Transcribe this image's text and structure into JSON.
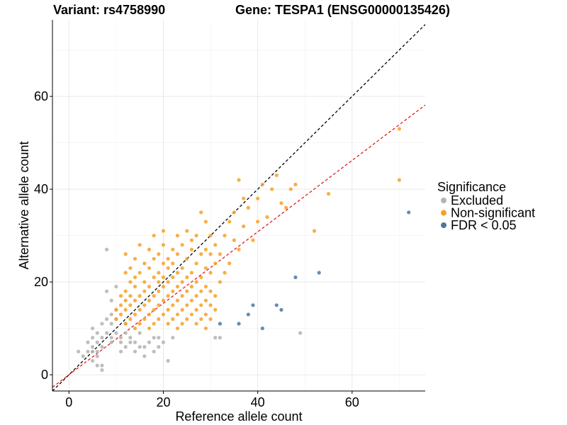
{
  "chart_data": {
    "type": "scatter",
    "title_left": "Variant: rs4758990",
    "title_right": "Gene: TESPA1 (ENSG00000135426)",
    "xlabel": "Reference allele count",
    "ylabel": "Alternative allele count",
    "xlim": [
      -3.5,
      75.5
    ],
    "ylim": [
      -3.5,
      76.5
    ],
    "xticks": [
      0,
      20,
      40,
      60
    ],
    "yticks": [
      0,
      20,
      40,
      60
    ],
    "legend": {
      "title": "Significance",
      "position": "right",
      "entries": [
        {
          "label": "Excluded",
          "color": "#b3b3b3"
        },
        {
          "label": "Non-significant",
          "color": "#f7a024"
        },
        {
          "label": "FDR < 0.05",
          "color": "#4a77a4"
        }
      ]
    },
    "reference_lines": [
      {
        "name": "identity",
        "slope": 1.0,
        "intercept": 0,
        "color": "#000000",
        "dash": true
      },
      {
        "name": "fitted",
        "slope": 0.77,
        "intercept": 0,
        "color": "#e41a1c",
        "dash": true
      }
    ],
    "series": [
      {
        "name": "Excluded",
        "color": "#b3b3b3",
        "points": [
          [
            2,
            5
          ],
          [
            3,
            4
          ],
          [
            4,
            5
          ],
          [
            4,
            7
          ],
          [
            5,
            3
          ],
          [
            5,
            5
          ],
          [
            5,
            6
          ],
          [
            5,
            8
          ],
          [
            5,
            10
          ],
          [
            6,
            2
          ],
          [
            6,
            4
          ],
          [
            6,
            5
          ],
          [
            6,
            7
          ],
          [
            6,
            9
          ],
          [
            7,
            1
          ],
          [
            7,
            2
          ],
          [
            7,
            6
          ],
          [
            7,
            8
          ],
          [
            7,
            11
          ],
          [
            8,
            9
          ],
          [
            8,
            12
          ],
          [
            8,
            18
          ],
          [
            8,
            27
          ],
          [
            9,
            7
          ],
          [
            9,
            8
          ],
          [
            9,
            11
          ],
          [
            9,
            13
          ],
          [
            9,
            16
          ],
          [
            10,
            9
          ],
          [
            10,
            12
          ],
          [
            10,
            14
          ],
          [
            10,
            19
          ],
          [
            11,
            5
          ],
          [
            11,
            7
          ],
          [
            11,
            8
          ],
          [
            12,
            6
          ],
          [
            12,
            9
          ],
          [
            12,
            11
          ],
          [
            13,
            7
          ],
          [
            13,
            8
          ],
          [
            14,
            5
          ],
          [
            14,
            7
          ],
          [
            15,
            6
          ],
          [
            15,
            9
          ],
          [
            16,
            4
          ],
          [
            16,
            6
          ],
          [
            17,
            7
          ],
          [
            18,
            5
          ],
          [
            18,
            8
          ],
          [
            19,
            6
          ],
          [
            19,
            8
          ],
          [
            20,
            7
          ],
          [
            21,
            3
          ],
          [
            22,
            8
          ],
          [
            31,
            8
          ],
          [
            32,
            8
          ],
          [
            49,
            9
          ]
        ]
      },
      {
        "name": "Non-significant",
        "color": "#f7a024",
        "points": [
          [
            10,
            14
          ],
          [
            10,
            12
          ],
          [
            11,
            13
          ],
          [
            11,
            17
          ],
          [
            11,
            15
          ],
          [
            12,
            11
          ],
          [
            12,
            14
          ],
          [
            12,
            16
          ],
          [
            12,
            18
          ],
          [
            12,
            22
          ],
          [
            12,
            26
          ],
          [
            13,
            12
          ],
          [
            13,
            15
          ],
          [
            13,
            17
          ],
          [
            13,
            20
          ],
          [
            13,
            23
          ],
          [
            14,
            10
          ],
          [
            14,
            13
          ],
          [
            14,
            16
          ],
          [
            14,
            19
          ],
          [
            14,
            21
          ],
          [
            14,
            25
          ],
          [
            15,
            11
          ],
          [
            15,
            14
          ],
          [
            15,
            17
          ],
          [
            15,
            22
          ],
          [
            15,
            28
          ],
          [
            16,
            12
          ],
          [
            16,
            15
          ],
          [
            16,
            18
          ],
          [
            16,
            20
          ],
          [
            16,
            24
          ],
          [
            17,
            10
          ],
          [
            17,
            13
          ],
          [
            17,
            16
          ],
          [
            17,
            19
          ],
          [
            17,
            23
          ],
          [
            17,
            27
          ],
          [
            18,
            11
          ],
          [
            18,
            14
          ],
          [
            18,
            17
          ],
          [
            18,
            21
          ],
          [
            18,
            25
          ],
          [
            18,
            30
          ],
          [
            19,
            12
          ],
          [
            19,
            15
          ],
          [
            19,
            18
          ],
          [
            19,
            20
          ],
          [
            19,
            22
          ],
          [
            19,
            26
          ],
          [
            20,
            13
          ],
          [
            20,
            16
          ],
          [
            20,
            19
          ],
          [
            20,
            21
          ],
          [
            20,
            24
          ],
          [
            20,
            28
          ],
          [
            20,
            31
          ],
          [
            21,
            11
          ],
          [
            21,
            14
          ],
          [
            21,
            17
          ],
          [
            21,
            20
          ],
          [
            21,
            23
          ],
          [
            21,
            25
          ],
          [
            22,
            12
          ],
          [
            22,
            15
          ],
          [
            22,
            18
          ],
          [
            22,
            21
          ],
          [
            22,
            24
          ],
          [
            22,
            27
          ],
          [
            23,
            10
          ],
          [
            23,
            13
          ],
          [
            23,
            16
          ],
          [
            23,
            19
          ],
          [
            23,
            22
          ],
          [
            23,
            26
          ],
          [
            23,
            30
          ],
          [
            24,
            11
          ],
          [
            24,
            14
          ],
          [
            24,
            17
          ],
          [
            24,
            20
          ],
          [
            24,
            23
          ],
          [
            24,
            28
          ],
          [
            25,
            12
          ],
          [
            25,
            15
          ],
          [
            25,
            18
          ],
          [
            25,
            21
          ],
          [
            25,
            25
          ],
          [
            25,
            31
          ],
          [
            26,
            13
          ],
          [
            26,
            16
          ],
          [
            26,
            19
          ],
          [
            26,
            22
          ],
          [
            26,
            27
          ],
          [
            26,
            29
          ],
          [
            27,
            11
          ],
          [
            27,
            14
          ],
          [
            27,
            17
          ],
          [
            27,
            20
          ],
          [
            27,
            24
          ],
          [
            27,
            30
          ],
          [
            28,
            12
          ],
          [
            28,
            15
          ],
          [
            28,
            18
          ],
          [
            28,
            21
          ],
          [
            28,
            26
          ],
          [
            28,
            35
          ],
          [
            29,
            10
          ],
          [
            29,
            13
          ],
          [
            29,
            16
          ],
          [
            29,
            19
          ],
          [
            29,
            23
          ],
          [
            29,
            27
          ],
          [
            29,
            33
          ],
          [
            30,
            12
          ],
          [
            30,
            15
          ],
          [
            30,
            18
          ],
          [
            30,
            22
          ],
          [
            30,
            26
          ],
          [
            30,
            30
          ],
          [
            31,
            14
          ],
          [
            31,
            17
          ],
          [
            31,
            24
          ],
          [
            31,
            28
          ],
          [
            32,
            20
          ],
          [
            32,
            26
          ],
          [
            33,
            22
          ],
          [
            33,
            30
          ],
          [
            34,
            24
          ],
          [
            34,
            33
          ],
          [
            35,
            29
          ],
          [
            35,
            35
          ],
          [
            36,
            27
          ],
          [
            36,
            42
          ],
          [
            37,
            32
          ],
          [
            37,
            38
          ],
          [
            38,
            36
          ],
          [
            39,
            29
          ],
          [
            40,
            33
          ],
          [
            40,
            38
          ],
          [
            41,
            41
          ],
          [
            42,
            34
          ],
          [
            43,
            40
          ],
          [
            44,
            43
          ],
          [
            45,
            37
          ],
          [
            46,
            36
          ],
          [
            47,
            40
          ],
          [
            48,
            41
          ],
          [
            52,
            31
          ],
          [
            55,
            39
          ],
          [
            70,
            53
          ],
          [
            70,
            42
          ]
        ]
      },
      {
        "name": "FDR < 0.05",
        "color": "#4a77a4",
        "points": [
          [
            32,
            11
          ],
          [
            36,
            11
          ],
          [
            38,
            13
          ],
          [
            39,
            15
          ],
          [
            41,
            10
          ],
          [
            44,
            15
          ],
          [
            45,
            14
          ],
          [
            48,
            21
          ],
          [
            53,
            22
          ],
          [
            72,
            35
          ]
        ]
      }
    ]
  }
}
